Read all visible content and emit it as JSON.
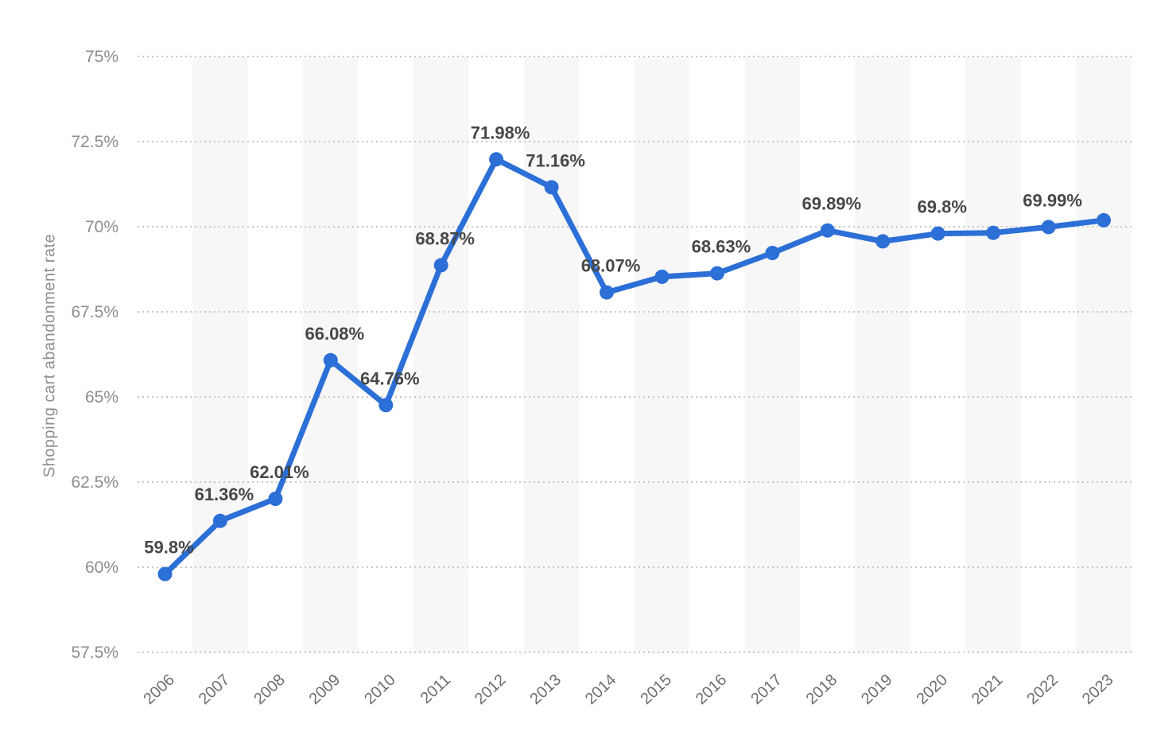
{
  "chart_data": {
    "type": "line",
    "title": "",
    "xlabel": "",
    "ylabel": "Shopping cart abandonment rate",
    "categories": [
      "2006",
      "2007",
      "2008",
      "2009",
      "2010",
      "2011",
      "2012",
      "2013",
      "2014",
      "2015",
      "2016",
      "2017",
      "2018",
      "2019",
      "2020",
      "2021",
      "2022",
      "2023"
    ],
    "series": [
      {
        "name": "Shopping cart abandonment rate",
        "values": [
          59.8,
          61.36,
          62.01,
          66.08,
          64.76,
          68.87,
          71.98,
          71.16,
          68.07,
          68.53,
          68.63,
          69.23,
          69.89,
          69.57,
          69.8,
          69.82,
          69.99,
          70.19
        ]
      }
    ],
    "point_labels": [
      "59.8%",
      "61.36%",
      "62.01%",
      "66.08%",
      "64.76%",
      "68.87%",
      "71.98%",
      "71.16%",
      "68.07%",
      "",
      "68.63%",
      "",
      "69.89%",
      "",
      "69.8%",
      "",
      "69.99%",
      ""
    ],
    "y_tick_labels": [
      "75%",
      "72.5%",
      "70%",
      "67.5%",
      "65%",
      "62.5%",
      "60%",
      "57.5%"
    ],
    "y_tick_values": [
      75,
      72.5,
      70,
      67.5,
      65,
      62.5,
      60,
      57.5
    ],
    "ylim": [
      57.5,
      75
    ],
    "grid": "horizontal-dotted",
    "legend": "none",
    "background_bands": "alternating vertical stripes on odd year columns",
    "colors": {
      "line": "#2c6fd6",
      "marker": "#2c6fd6",
      "band": "#f7f7f8",
      "grid": "#c7c7c7",
      "y_tick_text": "#8d8d8d",
      "x_tick_text": "#6e6e6e",
      "data_label": "#474747",
      "axis_title": "#8f8f8f",
      "background": "#ffffff"
    }
  }
}
